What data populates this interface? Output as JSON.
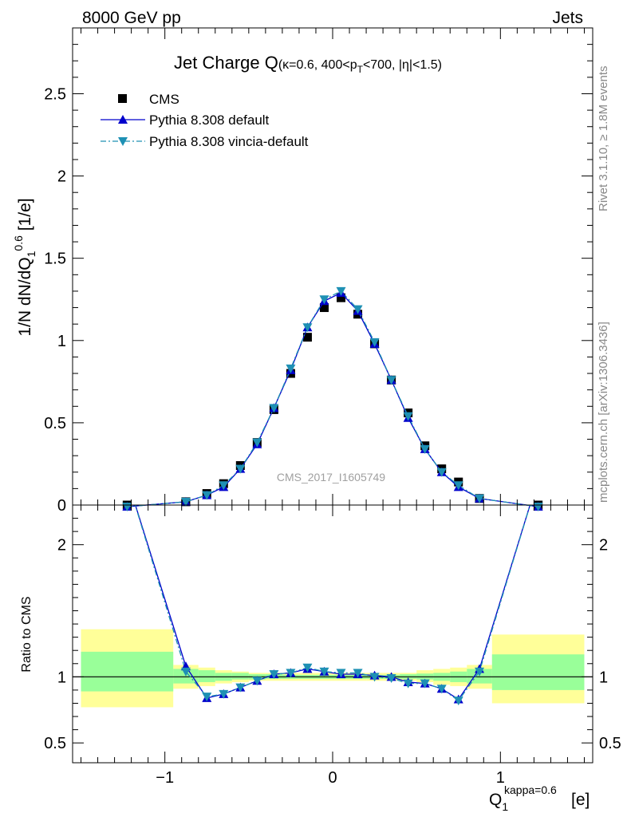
{
  "header": {
    "left": "8000 GeV pp",
    "right": "Jets"
  },
  "side_text": {
    "rivet": "Rivet 3.1.10, ≥ 1.8M events",
    "mcplots": "mcplots.cern.ch [arXiv:1306.3436]"
  },
  "watermark": "CMS_2017_I1605749",
  "chart_data": [
    {
      "type": "scatter",
      "title_main": "Jet Charge Q",
      "title_cond_1": "(κ=0.6, 400<p",
      "title_cond_sub": "T",
      "title_cond_2": "<700, |η|<1.5)",
      "ylabel_prefix": "1/N dN/dQ",
      "ylabel_sub": "1",
      "ylabel_sup": "0.6",
      "ylabel_suffix": " [1/e]",
      "xlim": [
        -1.55,
        1.55
      ],
      "ylim": [
        0,
        2.9
      ],
      "yticks": [
        0,
        0.5,
        1,
        1.5,
        2,
        2.5
      ],
      "ytick_labels": [
        "0",
        "0.5",
        "1",
        "1.5",
        "2",
        "2.5"
      ],
      "legend_position": "top-left",
      "series": [
        {
          "name": "CMS",
          "style": "square",
          "color": "#000000",
          "x": [
            -1.225,
            -0.875,
            -0.75,
            -0.65,
            -0.55,
            -0.45,
            -0.35,
            -0.25,
            -0.15,
            -0.05,
            0.05,
            0.15,
            0.25,
            0.35,
            0.45,
            0.55,
            0.65,
            0.75,
            0.875,
            1.225
          ],
          "y": [
            0.0,
            0.02,
            0.07,
            0.13,
            0.24,
            0.38,
            0.58,
            0.8,
            1.02,
            1.2,
            1.26,
            1.16,
            0.98,
            0.76,
            0.56,
            0.36,
            0.22,
            0.14,
            0.04,
            0.0
          ]
        },
        {
          "name": "Pythia 8.308 default",
          "style": "line-triangle-up",
          "color": "#0000cc",
          "x": [
            -1.225,
            -0.875,
            -0.75,
            -0.65,
            -0.55,
            -0.45,
            -0.35,
            -0.25,
            -0.15,
            -0.05,
            0.05,
            0.15,
            0.25,
            0.35,
            0.45,
            0.55,
            0.65,
            0.75,
            0.875,
            1.225
          ],
          "y": [
            -0.01,
            0.02,
            0.06,
            0.11,
            0.22,
            0.37,
            0.59,
            0.82,
            1.08,
            1.24,
            1.29,
            1.18,
            0.98,
            0.76,
            0.53,
            0.34,
            0.2,
            0.11,
            0.04,
            -0.01
          ]
        },
        {
          "name": "Pythia 8.308 vincia-default",
          "style": "dashdot-triangle-down",
          "color": "#1e90b4",
          "x": [
            -1.225,
            -0.875,
            -0.75,
            -0.65,
            -0.55,
            -0.45,
            -0.35,
            -0.25,
            -0.15,
            -0.05,
            0.05,
            0.15,
            0.25,
            0.35,
            0.45,
            0.55,
            0.65,
            0.75,
            0.875,
            1.225
          ],
          "y": [
            -0.01,
            0.02,
            0.06,
            0.12,
            0.22,
            0.38,
            0.59,
            0.83,
            1.08,
            1.25,
            1.3,
            1.19,
            0.99,
            0.76,
            0.54,
            0.34,
            0.2,
            0.12,
            0.04,
            -0.01
          ]
        }
      ]
    },
    {
      "type": "line",
      "ylabel": "Ratio to CMS",
      "xlabel_main": "Q",
      "xlabel_sub": "1",
      "xlabel_sup": "kappa=0.6",
      "xlabel_unit": "[e]",
      "xlim": [
        -1.55,
        1.55
      ],
      "ylim": [
        0.35,
        2.3
      ],
      "xticks": [
        -1,
        0,
        1
      ],
      "xtick_labels": [
        "−1",
        "0",
        "1"
      ],
      "yticks": [
        0.5,
        1,
        2
      ],
      "ytick_labels": [
        "0.5",
        "1",
        "2"
      ],
      "bands": {
        "bin_edges": [
          -1.5,
          -0.95,
          -0.8,
          -0.7,
          -0.6,
          -0.5,
          -0.4,
          -0.3,
          -0.2,
          -0.1,
          0.0,
          0.1,
          0.2,
          0.3,
          0.4,
          0.5,
          0.6,
          0.7,
          0.8,
          0.95,
          1.5
        ],
        "outer_low": [
          0.77,
          0.91,
          0.93,
          0.95,
          0.96,
          0.97,
          0.97,
          0.97,
          0.97,
          0.97,
          0.97,
          0.97,
          0.97,
          0.97,
          0.97,
          0.96,
          0.94,
          0.93,
          0.91,
          0.8
        ],
        "outer_high": [
          1.36,
          1.09,
          1.07,
          1.05,
          1.04,
          1.03,
          1.03,
          1.03,
          1.03,
          1.03,
          1.03,
          1.03,
          1.03,
          1.03,
          1.03,
          1.05,
          1.06,
          1.07,
          1.09,
          1.32
        ],
        "inner_low": [
          0.89,
          0.95,
          0.96,
          0.97,
          0.98,
          0.98,
          0.985,
          0.985,
          0.985,
          0.985,
          0.985,
          0.985,
          0.985,
          0.985,
          0.985,
          0.98,
          0.97,
          0.96,
          0.95,
          0.9
        ],
        "inner_high": [
          1.19,
          1.06,
          1.05,
          1.03,
          1.03,
          1.02,
          1.02,
          1.015,
          1.015,
          1.015,
          1.015,
          1.015,
          1.015,
          1.015,
          1.02,
          1.025,
          1.03,
          1.04,
          1.06,
          1.17
        ],
        "outer_color": "#ffff99",
        "inner_color": "#99ff99"
      },
      "series": [
        {
          "name": "Pythia 8.308 default",
          "style": "line-triangle-up",
          "color": "#0000cc",
          "x": [
            -1.225,
            -0.875,
            -0.75,
            -0.65,
            -0.55,
            -0.45,
            -0.35,
            -0.25,
            -0.15,
            -0.05,
            0.05,
            0.15,
            0.25,
            0.35,
            0.45,
            0.55,
            0.65,
            0.75,
            0.875,
            1.225
          ],
          "y": [
            2.5,
            1.08,
            0.84,
            0.87,
            0.92,
            0.97,
            1.02,
            1.03,
            1.06,
            1.04,
            1.02,
            1.02,
            1.01,
            1.0,
            0.96,
            0.95,
            0.91,
            0.83,
            1.06,
            2.5
          ]
        },
        {
          "name": "Pythia 8.308 vincia-default",
          "style": "dashdot-triangle-down",
          "color": "#1e90b4",
          "x": [
            -1.225,
            -0.875,
            -0.75,
            -0.65,
            -0.55,
            -0.45,
            -0.35,
            -0.25,
            -0.15,
            -0.05,
            0.05,
            0.15,
            0.25,
            0.35,
            0.45,
            0.55,
            0.65,
            0.75,
            0.875,
            1.225
          ],
          "y": [
            2.5,
            1.04,
            0.85,
            0.87,
            0.92,
            0.97,
            1.02,
            1.03,
            1.07,
            1.04,
            1.03,
            1.03,
            1.0,
            0.99,
            0.95,
            0.95,
            0.91,
            0.82,
            1.04,
            2.5
          ]
        }
      ]
    }
  ]
}
